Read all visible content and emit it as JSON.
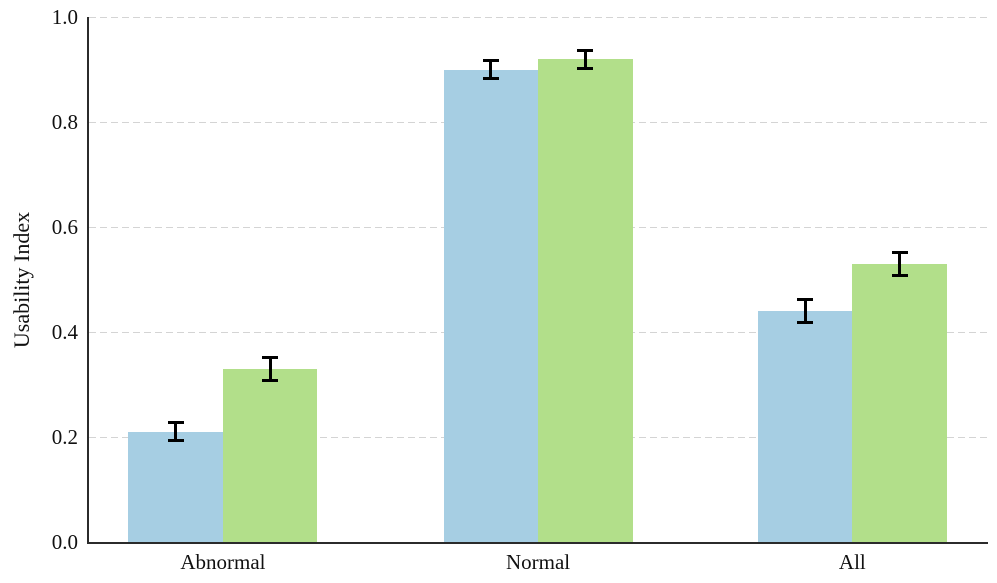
{
  "chart_data": {
    "type": "bar",
    "title": "",
    "xlabel": "",
    "ylabel": "Usability Index",
    "categories": [
      "Abnormal",
      "Normal",
      "All"
    ],
    "series": [
      {
        "name": "blue-bars",
        "color": "#a6cee3",
        "values": [
          0.21,
          0.9,
          0.44
        ],
        "errors": [
          0.02,
          0.02,
          0.025
        ]
      },
      {
        "name": "green-bars",
        "color": "#b2df8a",
        "values": [
          0.33,
          0.92,
          0.53
        ],
        "errors": [
          0.025,
          0.02,
          0.025
        ]
      }
    ],
    "ylim": [
      0.0,
      1.0
    ],
    "ytick_labels": [
      "0.0",
      "0.2",
      "0.4",
      "0.6",
      "0.8",
      "1.0"
    ],
    "grid": {
      "horizontal": true,
      "style": "dashed",
      "color": "#d4d4d4",
      "at": [
        0.2,
        0.4,
        0.6,
        0.8,
        1.0
      ]
    },
    "legend": "none",
    "error_bar_color": "#000000",
    "axis_color": "#2b2b2b",
    "background": "#ffffff"
  }
}
